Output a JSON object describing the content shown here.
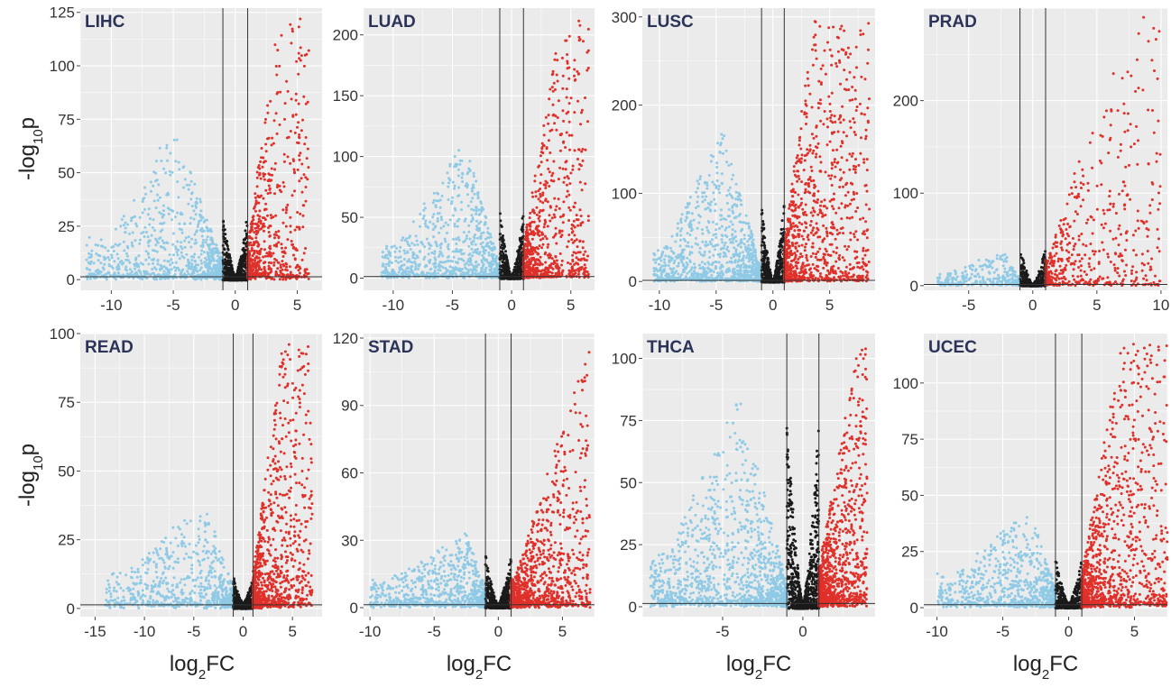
{
  "figure": {
    "y_axis_label": {
      "main": "-log",
      "sub": "10",
      "tail": "p"
    },
    "x_axis_label": {
      "main": "log",
      "sub": "2",
      "tail": "FC"
    }
  },
  "colors": {
    "panel_bg": "#ebebeb",
    "grid": "#ffffff",
    "down": "#8ecae6",
    "up": "#e0302a",
    "ns": "#1a1a1a",
    "threshold_line": "#333333",
    "tag_text": "#2b3358",
    "tick_text": "#333333"
  },
  "chart_data": [
    {
      "type": "scatter",
      "title": "LIHC",
      "xlim": [
        -12.5,
        7
      ],
      "ylim": [
        -5,
        127
      ],
      "xticks": [
        -10,
        -5,
        0,
        5
      ],
      "yticks": [
        0,
        25,
        50,
        75,
        100,
        125
      ],
      "fc_threshold": 1,
      "p_threshold_line": 1.3,
      "series": [
        {
          "class": "down",
          "x_min": -12,
          "x_max": -1,
          "y_max_at_edge": 18,
          "y_peak": 70,
          "peak_x": -5,
          "n": 900
        },
        {
          "class": "ns",
          "x_min": -1,
          "x_max": 1,
          "y_max": 30,
          "n": 500
        },
        {
          "class": "up",
          "x_min": 1,
          "x_max": 6,
          "y_peak": 122,
          "peak_x": 3.5,
          "n": 650
        }
      ]
    },
    {
      "type": "scatter",
      "title": "LUAD",
      "xlim": [
        -12.5,
        7
      ],
      "ylim": [
        -10,
        222
      ],
      "xticks": [
        -10,
        -5,
        0,
        5
      ],
      "yticks": [
        0,
        50,
        100,
        150,
        200
      ],
      "fc_threshold": 1,
      "p_threshold_line": 1.3,
      "series": [
        {
          "class": "down",
          "x_min": -11,
          "x_max": -1,
          "y_max_at_edge": 5,
          "y_peak": 112,
          "peak_x": -4,
          "n": 900
        },
        {
          "class": "ns",
          "x_min": -1,
          "x_max": 1,
          "y_max": 55,
          "n": 500
        },
        {
          "class": "up",
          "x_min": 1,
          "x_max": 6.5,
          "y_peak": 210,
          "peak_x": 4,
          "n": 800
        }
      ]
    },
    {
      "type": "scatter",
      "title": "LUSC",
      "xlim": [
        -11.5,
        9
      ],
      "ylim": [
        -10,
        310
      ],
      "xticks": [
        -10,
        -5,
        0,
        5
      ],
      "yticks": [
        0,
        100,
        200,
        300
      ],
      "fc_threshold": 1,
      "p_threshold_line": 1.3,
      "series": [
        {
          "class": "down",
          "x_min": -10.5,
          "x_max": -1,
          "y_max_at_edge": 30,
          "y_peak": 175,
          "peak_x": -4.5,
          "n": 1100
        },
        {
          "class": "ns",
          "x_min": -1,
          "x_max": 1,
          "y_max": 90,
          "n": 500
        },
        {
          "class": "up",
          "x_min": 1,
          "x_max": 8.5,
          "y_peak": 295,
          "peak_x": 3.5,
          "n": 1000
        }
      ]
    },
    {
      "type": "scatter",
      "title": "PRAD",
      "xlim": [
        -8.5,
        10.5
      ],
      "ylim": [
        -5,
        300
      ],
      "xticks": [
        -5,
        0,
        5,
        10
      ],
      "yticks": [
        0,
        100,
        200
      ],
      "fc_threshold": 1,
      "p_threshold_line": 1.3,
      "series": [
        {
          "class": "down",
          "x_min": -7.5,
          "x_max": -1,
          "y_max_at_edge": 8,
          "y_peak": 40,
          "peak_x": -2.5,
          "n": 300
        },
        {
          "class": "ns",
          "x_min": -1,
          "x_max": 1,
          "y_max": 40,
          "n": 350
        },
        {
          "class": "up",
          "x_min": 1,
          "x_max": 10,
          "y_peak": 290,
          "peak_x": 7,
          "n": 550
        }
      ]
    },
    {
      "type": "scatter",
      "title": "READ",
      "xlim": [
        -16.5,
        8
      ],
      "ylim": [
        -3,
        100
      ],
      "xticks": [
        -15,
        -10,
        -5,
        0,
        5
      ],
      "yticks": [
        0,
        25,
        50,
        75,
        100
      ],
      "fc_threshold": 1,
      "p_threshold_line": 1.3,
      "series": [
        {
          "class": "down",
          "x_min": -14,
          "x_max": -1,
          "y_max_at_edge": 3,
          "y_peak": 38,
          "peak_x": -4,
          "n": 700
        },
        {
          "class": "ns",
          "x_min": -1,
          "x_max": 1,
          "y_max": 10,
          "n": 400
        },
        {
          "class": "up",
          "x_min": 1,
          "x_max": 7,
          "y_peak": 96,
          "peak_x": 4,
          "n": 900
        }
      ]
    },
    {
      "type": "scatter",
      "title": "STAD",
      "xlim": [
        -10.5,
        7.5
      ],
      "ylim": [
        -4,
        122
      ],
      "xticks": [
        -10,
        -5,
        0,
        5
      ],
      "yticks": [
        0,
        30,
        60,
        90,
        120
      ],
      "fc_threshold": 1,
      "p_threshold_line": 1.3,
      "series": [
        {
          "class": "down",
          "x_min": -10,
          "x_max": -1,
          "y_max_at_edge": 8,
          "y_peak": 32,
          "peak_x": -2.5,
          "n": 800
        },
        {
          "class": "ns",
          "x_min": -1,
          "x_max": 1,
          "y_max": 22,
          "n": 450
        },
        {
          "class": "up",
          "x_min": 1,
          "x_max": 7.2,
          "y_peak": 116,
          "peak_x": 7,
          "n": 1000
        }
      ]
    },
    {
      "type": "scatter",
      "title": "THCA",
      "xlim": [
        -10,
        4.5
      ],
      "ylim": [
        -4,
        110
      ],
      "xticks": [
        -5,
        0
      ],
      "yticks": [
        0,
        25,
        50,
        75,
        100
      ],
      "fc_threshold": 1,
      "p_threshold_line": 1.3,
      "series": [
        {
          "class": "down",
          "x_min": -9.5,
          "x_max": -1,
          "y_max_at_edge": 40,
          "y_peak": 83,
          "peak_x": -4,
          "n": 1300
        },
        {
          "class": "ns",
          "x_min": -1,
          "x_max": 1,
          "y_max": 76,
          "n": 700
        },
        {
          "class": "up",
          "x_min": 1,
          "x_max": 4,
          "y_peak": 106,
          "peak_x": 3.5,
          "n": 1000
        }
      ]
    },
    {
      "type": "scatter",
      "title": "UCEC",
      "xlim": [
        -11,
        7.5
      ],
      "ylim": [
        -4,
        122
      ],
      "xticks": [
        -10,
        -5,
        0,
        5
      ],
      "yticks": [
        0,
        25,
        50,
        75,
        100
      ],
      "fc_threshold": 1,
      "p_threshold_line": 1.3,
      "series": [
        {
          "class": "down",
          "x_min": -10,
          "x_max": -1,
          "y_max_at_edge": 6,
          "y_peak": 44,
          "peak_x": -3,
          "n": 800
        },
        {
          "class": "ns",
          "x_min": -1,
          "x_max": 1,
          "y_max": 22,
          "n": 400
        },
        {
          "class": "up",
          "x_min": 1,
          "x_max": 7.5,
          "y_peak": 117,
          "peak_x": 4,
          "n": 1100
        }
      ]
    }
  ]
}
